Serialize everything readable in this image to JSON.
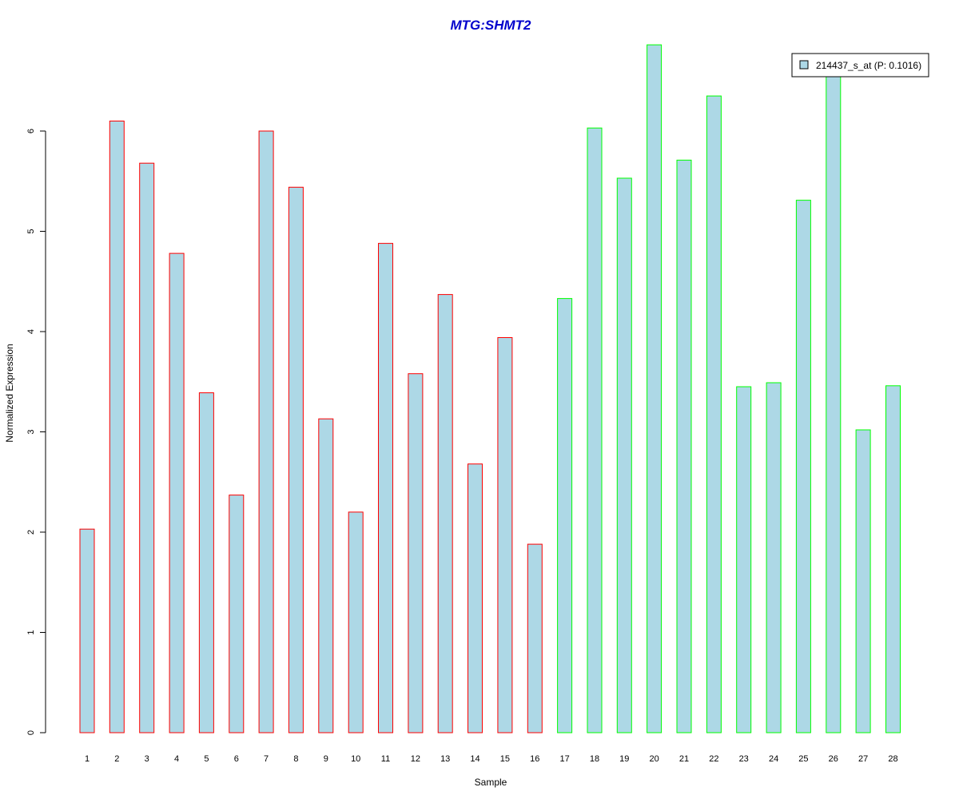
{
  "chart_data": {
    "type": "bar",
    "title": "MTG:SHMT2",
    "xlabel": "Sample",
    "ylabel": "Normalized Expression",
    "categories": [
      "1",
      "2",
      "3",
      "4",
      "5",
      "6",
      "7",
      "8",
      "9",
      "10",
      "11",
      "12",
      "13",
      "14",
      "15",
      "16",
      "17",
      "18",
      "19",
      "20",
      "21",
      "22",
      "23",
      "24",
      "25",
      "26",
      "27",
      "28"
    ],
    "values": [
      2.03,
      6.1,
      5.68,
      4.78,
      3.39,
      2.37,
      6.0,
      5.44,
      3.13,
      2.2,
      4.88,
      3.58,
      4.37,
      2.68,
      3.94,
      1.88,
      4.33,
      6.03,
      5.53,
      6.86,
      5.71,
      6.35,
      3.45,
      3.49,
      5.31,
      6.58,
      3.02,
      3.46
    ],
    "groups": [
      "red",
      "red",
      "red",
      "red",
      "red",
      "red",
      "red",
      "red",
      "red",
      "red",
      "red",
      "red",
      "red",
      "red",
      "red",
      "red",
      "green",
      "green",
      "green",
      "green",
      "green",
      "green",
      "green",
      "green",
      "green",
      "green",
      "green",
      "green"
    ],
    "yticks": [
      "0",
      "1",
      "2",
      "3",
      "4",
      "5",
      "6"
    ],
    "ylim": [
      0,
      6.86
    ],
    "grid": false,
    "legend": {
      "position": "top-right",
      "entries": [
        "214437_s_at (P: 0.1016)"
      ]
    },
    "colors": {
      "bar_fill": "#add8e6",
      "border_group_red": "#ff0000",
      "border_group_green": "#00ff00",
      "title": "#0000cc",
      "axis": "#000000"
    }
  }
}
